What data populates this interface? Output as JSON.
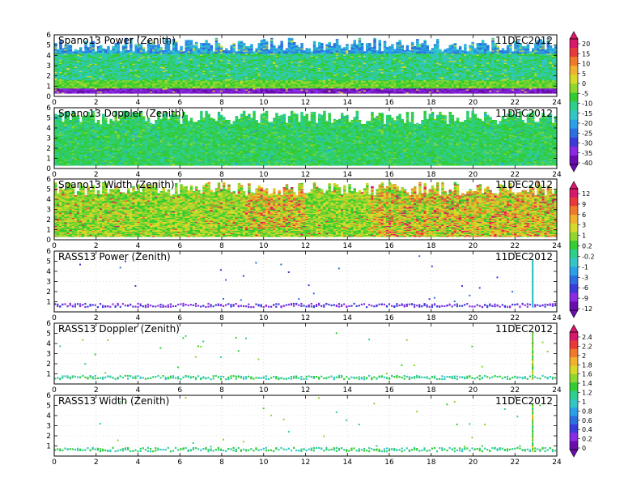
{
  "chart_data": {
    "type": "heatmap",
    "date_label": "11DEC2012",
    "x_ticks": [
      0,
      2,
      4,
      6,
      8,
      10,
      12,
      14,
      16,
      18,
      20,
      22,
      24
    ],
    "x_range": [
      0,
      24
    ],
    "y_ticks": [
      0,
      1,
      2,
      3,
      4,
      5,
      6
    ],
    "y_range": [
      0,
      6
    ],
    "panels": [
      {
        "title": "Spano13 Power (Zenith)",
        "date": "11DEC2012",
        "kind": "spano_power",
        "y_ticks": [
          0,
          1,
          2,
          3,
          4,
          5,
          6
        ]
      },
      {
        "title": "Spano13 Doppler (Zenith)",
        "date": "11DEC2012",
        "kind": "spano_doppler",
        "y_ticks": [
          0,
          1,
          2,
          3,
          4,
          5,
          6
        ]
      },
      {
        "title": "Spano13 Width (Zenith)",
        "date": "11DEC2012",
        "kind": "spano_width",
        "y_ticks": [
          0,
          1,
          2,
          3,
          4,
          5,
          6
        ]
      },
      {
        "title": "RASS13 Power (Zenith)",
        "date": "11DEC2012",
        "kind": "rass_power",
        "y_ticks": [
          1,
          2,
          3,
          4,
          5,
          6
        ]
      },
      {
        "title": "RASS13 Doppler (Zenith)",
        "date": "11DEC2012",
        "kind": "rass_doppler",
        "y_ticks": [
          1,
          2,
          3,
          4,
          5,
          6
        ]
      },
      {
        "title": "RASS13 Width (Zenith)",
        "date": "11DEC2012",
        "kind": "rass_width",
        "y_ticks": [
          1,
          2,
          3,
          4,
          5,
          6
        ]
      }
    ],
    "colorbars": [
      {
        "labels": [
          "20",
          "15",
          "10",
          "5",
          "0",
          "-5",
          "-10",
          "-15",
          "-20",
          "-25",
          "-30",
          "-35",
          "-40"
        ]
      },
      {
        "labels": [
          "12",
          "9",
          "6",
          "3",
          "1",
          "0.2",
          "-0.2",
          "-1",
          "-3",
          "-6",
          "-9",
          "-12"
        ]
      },
      {
        "labels": [
          "2.4",
          "2.2",
          "2",
          "1.8",
          "1.6",
          "1.4",
          "1.2",
          "1",
          "0.8",
          "0.6",
          "0.4",
          "0.2",
          "0"
        ]
      }
    ],
    "palette": [
      "#6a0dad",
      "#8a2be2",
      "#3b3bd9",
      "#2d6fe0",
      "#2aa0e8",
      "#33c6c6",
      "#2ecf8a",
      "#33cc33",
      "#8fd62e",
      "#d7d92a",
      "#f0b030",
      "#f07a2a",
      "#e83a3a",
      "#d8186b"
    ]
  }
}
